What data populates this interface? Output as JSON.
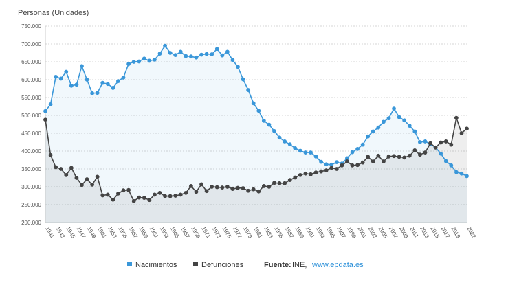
{
  "chart_data": {
    "type": "line",
    "ylabel": "Personas (Unidades)",
    "ylim": [
      200000,
      750000
    ],
    "yticks": [
      "200.000",
      "250.000",
      "300.000",
      "350.000",
      "400.000",
      "450.000",
      "500.000",
      "550.000",
      "600.000",
      "650.000",
      "700.000",
      "750.000"
    ],
    "x": [
      1941,
      1942,
      1943,
      1944,
      1945,
      1946,
      1947,
      1948,
      1949,
      1950,
      1951,
      1952,
      1953,
      1954,
      1955,
      1956,
      1957,
      1958,
      1959,
      1960,
      1961,
      1962,
      1963,
      1964,
      1965,
      1966,
      1967,
      1968,
      1969,
      1970,
      1971,
      1972,
      1973,
      1974,
      1975,
      1976,
      1977,
      1978,
      1979,
      1980,
      1981,
      1982,
      1983,
      1984,
      1985,
      1986,
      1987,
      1988,
      1989,
      1990,
      1991,
      1992,
      1993,
      1994,
      1995,
      1996,
      1997,
      1998,
      1999,
      2000,
      2001,
      2002,
      2003,
      2004,
      2005,
      2006,
      2007,
      2008,
      2009,
      2010,
      2011,
      2012,
      2013,
      2014,
      2015,
      2016,
      2017,
      2018,
      2019,
      2020,
      2021,
      2022
    ],
    "xtick_labels": [
      "1941",
      "1943",
      "1945",
      "1947",
      "1949",
      "1951",
      "1953",
      "1955",
      "1957",
      "1959",
      "1961",
      "1963",
      "1965",
      "1967",
      "1969",
      "1971",
      "1973",
      "1975",
      "1977",
      "1979",
      "1981",
      "1983",
      "1985",
      "1987",
      "1989",
      "1991",
      "1993",
      "1995",
      "1997",
      "1999",
      "2001",
      "2003",
      "2005",
      "2007",
      "2009",
      "2011",
      "2013",
      "2015",
      "2017",
      "2019",
      "2022"
    ],
    "series": [
      {
        "name": "Nacimientos",
        "color": "#3a97d9",
        "values": [
          512000,
          531000,
          608000,
          603000,
          622000,
          583000,
          586000,
          638000,
          600000,
          562000,
          563000,
          591000,
          588000,
          577000,
          596000,
          606000,
          644000,
          650000,
          651000,
          659000,
          653000,
          656000,
          673000,
          695000,
          675000,
          669000,
          678000,
          666000,
          665000,
          662000,
          670000,
          672000,
          671000,
          686000,
          668000,
          678000,
          655000,
          636000,
          601000,
          571000,
          534000,
          513000,
          485000,
          474000,
          456000,
          438000,
          427000,
          419000,
          408000,
          401000,
          396000,
          396000,
          385000,
          370000,
          363000,
          362000,
          369000,
          365000,
          380000,
          397000,
          406000,
          418000,
          441000,
          455000,
          466000,
          482000,
          492000,
          519000,
          495000,
          486000,
          471000,
          455000,
          425000,
          427000,
          420000,
          410000,
          393000,
          372000,
          360000,
          341000,
          337000,
          330000
        ]
      },
      {
        "name": "Defunciones",
        "color": "#444444",
        "values": [
          488000,
          389000,
          355000,
          350000,
          333000,
          353000,
          325000,
          305000,
          321000,
          306000,
          328000,
          276000,
          278000,
          264000,
          281000,
          290000,
          291000,
          260000,
          270000,
          269000,
          263000,
          278000,
          283000,
          274000,
          274000,
          275000,
          278000,
          283000,
          302000,
          286000,
          307000,
          288000,
          300000,
          299000,
          298000,
          300000,
          294000,
          297000,
          296000,
          289000,
          293000,
          287000,
          302000,
          300000,
          311000,
          310000,
          310000,
          319000,
          326000,
          333000,
          337000,
          335000,
          340000,
          343000,
          346000,
          353000,
          350000,
          360000,
          371000,
          360000,
          361000,
          368000,
          384000,
          371000,
          387000,
          371000,
          385000,
          386000,
          384000,
          382000,
          387000,
          402000,
          390000,
          396000,
          422000,
          410000,
          424000,
          427000,
          418000,
          493000,
          450000,
          463000
        ]
      }
    ],
    "legend": [
      "Nacimientos",
      "Defunciones"
    ],
    "legend_position": "bottom",
    "source_label": "Fuente:",
    "source_name": "INE,",
    "source_link": "www.epdata.es",
    "grid": true
  }
}
